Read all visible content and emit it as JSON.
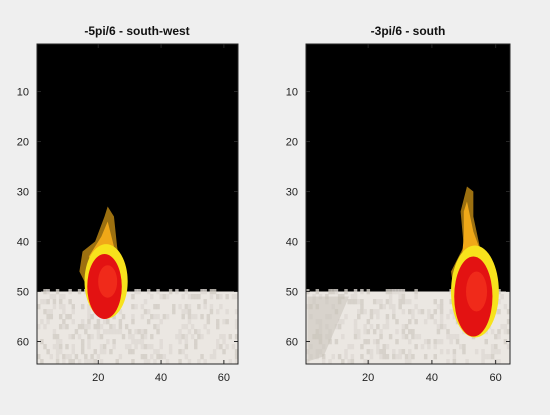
{
  "figure": {
    "background": "#efefef",
    "colors": {
      "sky": "#000000",
      "floor_light": "#ebe7e2",
      "floor_dark": "#d2cdc6",
      "flame_red": "#e31212",
      "flame_orange": "#f0a818",
      "flame_yellow": "#f7e21c",
      "flame_dark": "#9c7010",
      "axis": "#262626"
    }
  },
  "chart_data": [
    {
      "type": "image",
      "title": "-5pi/6 - south-west",
      "xlim": [
        0.5,
        64.5
      ],
      "ylim": [
        0.5,
        64.5
      ],
      "y_reversed": true,
      "xticks": [
        20,
        40,
        60
      ],
      "yticks": [
        10,
        20,
        30,
        40,
        50,
        60
      ],
      "xticklabels": [
        "20",
        "40",
        "60"
      ],
      "yticklabels": [
        "10",
        "20",
        "30",
        "40",
        "50",
        "60"
      ],
      "horizon_row": 50,
      "flame": {
        "tip": [
          23,
          33
        ],
        "ball_center": [
          22,
          49
        ],
        "ball_radius": [
          5.5,
          6.5
        ],
        "lean": "left"
      }
    },
    {
      "type": "image",
      "title": "-3pi/6 - south",
      "xlim": [
        0.5,
        64.5
      ],
      "ylim": [
        0.5,
        64.5
      ],
      "y_reversed": true,
      "xticks": [
        20,
        40,
        60
      ],
      "yticks": [
        10,
        20,
        30,
        40,
        50,
        60
      ],
      "xticklabels": [
        "20",
        "40",
        "60"
      ],
      "yticklabels": [
        "10",
        "20",
        "30",
        "40",
        "50",
        "60"
      ],
      "horizon_row": 50,
      "flame": {
        "tip": [
          51,
          29
        ],
        "ball_center": [
          53,
          51
        ],
        "ball_radius": [
          6,
          8
        ],
        "lean": "up"
      }
    }
  ]
}
